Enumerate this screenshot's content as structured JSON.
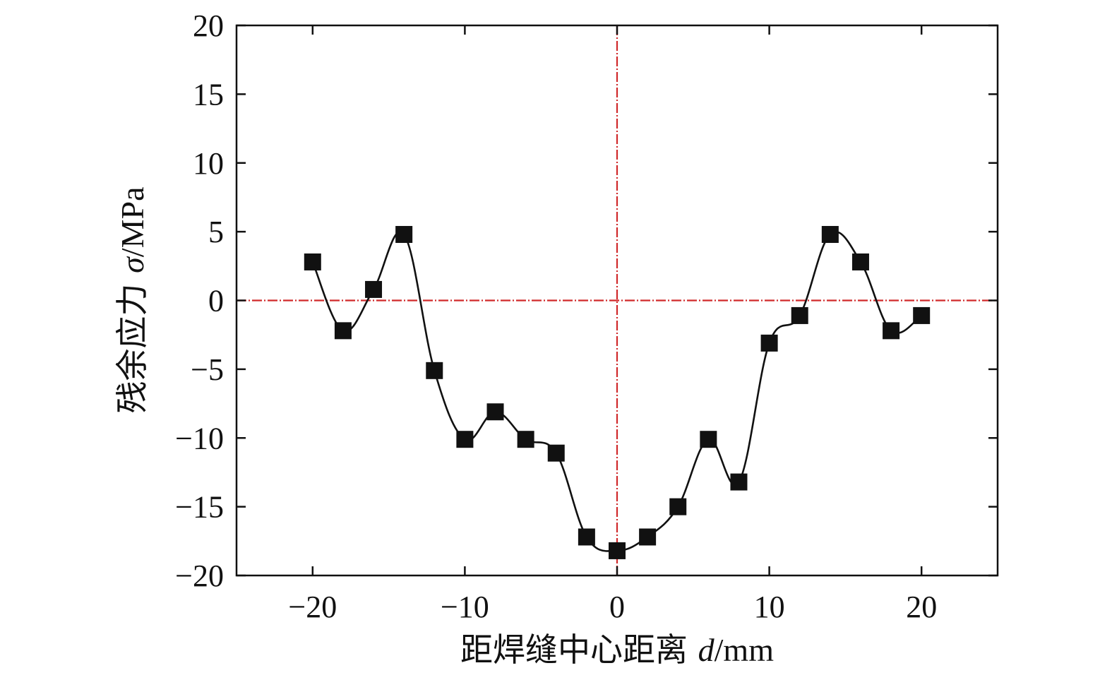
{
  "chart_data": {
    "type": "line",
    "xlabel_cn": "距焊缝中心距离 ",
    "xlabel_sym": "d",
    "xlabel_unit": "/mm",
    "ylabel_cn": "残余应力 ",
    "ylabel_sym": "σ",
    "ylabel_unit": "/MPa",
    "xlim": [
      -25,
      25
    ],
    "ylim": [
      -20,
      20
    ],
    "x_ticks": [
      -20,
      -10,
      0,
      10,
      20
    ],
    "y_ticks": [
      20,
      15,
      10,
      5,
      0,
      -5,
      -10,
      -15,
      -20
    ],
    "x_tick_labels": [
      "−20",
      "−10",
      "0",
      "10",
      "20"
    ],
    "y_tick_labels": [
      "20",
      "15",
      "10",
      "5",
      "0",
      "−5",
      "−10",
      "−15",
      "−20"
    ],
    "reference_lines": {
      "x": 0,
      "y": 0,
      "color": "#d0292b"
    },
    "grid": false,
    "series": [
      {
        "marker": "square",
        "color": "#111111",
        "x": [
          -20,
          -18,
          -16,
          -14,
          -12,
          -10,
          -8,
          -6,
          -4,
          -2,
          0,
          2,
          4,
          6,
          8,
          10,
          12,
          14,
          16,
          18,
          20
        ],
        "y": [
          2.8,
          -2.2,
          0.8,
          4.8,
          -5.1,
          -10.1,
          -8.1,
          -10.1,
          -11.1,
          -17.2,
          -18.2,
          -17.2,
          -15.0,
          -10.1,
          -13.2,
          -3.1,
          -1.1,
          4.8,
          2.8,
          -2.2,
          -1.1
        ]
      }
    ]
  }
}
